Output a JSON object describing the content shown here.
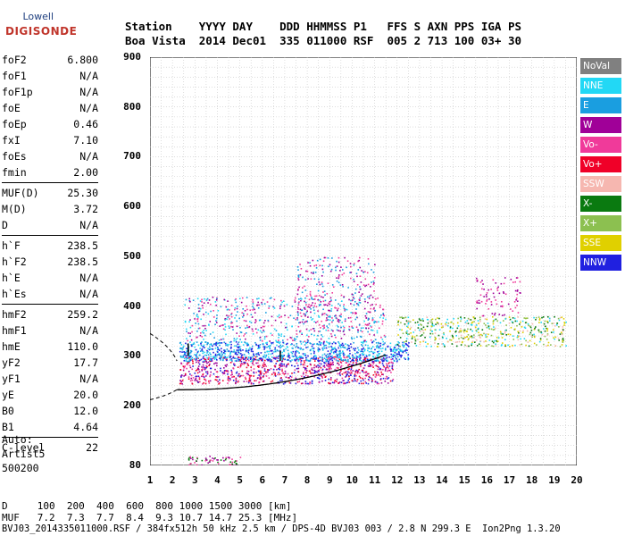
{
  "logo": {
    "line1": "Lowell",
    "line2": "DIGISONDE"
  },
  "header": {
    "row1": "Station    YYYY DAY    DDD HHMMSS P1   FFS S AXN PPS IGA PS",
    "row2": "Boa Vista  2014 Dec01  335 011000 RSF  005 2 713 100 03+ 30"
  },
  "params": {
    "group1": [
      {
        "name": "foF2",
        "value": "6.800"
      },
      {
        "name": "foF1",
        "value": "N/A"
      },
      {
        "name": "foF1p",
        "value": "N/A"
      },
      {
        "name": "foE",
        "value": "N/A"
      },
      {
        "name": "foEp",
        "value": "0.46"
      },
      {
        "name": "fxI",
        "value": "7.10"
      },
      {
        "name": "foEs",
        "value": "N/A"
      },
      {
        "name": "fmin",
        "value": "2.00"
      }
    ],
    "group2": [
      {
        "name": "MUF(D)",
        "value": "25.30"
      },
      {
        "name": "M(D)",
        "value": "3.72"
      },
      {
        "name": "D",
        "value": "N/A"
      }
    ],
    "group3": [
      {
        "name": "h`F",
        "value": "238.5"
      },
      {
        "name": "h`F2",
        "value": "238.5"
      },
      {
        "name": "h`E",
        "value": "N/A"
      },
      {
        "name": "h`Es",
        "value": "N/A"
      }
    ],
    "group4": [
      {
        "name": "hmF2",
        "value": "259.2"
      },
      {
        "name": "hmF1",
        "value": "N/A"
      },
      {
        "name": "hmE",
        "value": "110.0"
      },
      {
        "name": "yF2",
        "value": "17.7"
      },
      {
        "name": "yF1",
        "value": "N/A"
      },
      {
        "name": "yE",
        "value": "20.0"
      },
      {
        "name": "B0",
        "value": "12.0"
      },
      {
        "name": "B1",
        "value": "4.64"
      }
    ],
    "group5": [
      {
        "name": "C-level",
        "value": "22"
      }
    ]
  },
  "auto": {
    "line1": "Auto:",
    "line2": "Artist5",
    "line3": "500200"
  },
  "legend": [
    {
      "label": "NoVal",
      "color": "#808080"
    },
    {
      "label": "NNE",
      "color": "#22d8f5"
    },
    {
      "label": "E",
      "color": "#1a9ee0"
    },
    {
      "label": "W",
      "color": "#a00098"
    },
    {
      "label": "Vo-",
      "color": "#f03a9a"
    },
    {
      "label": "Vo+",
      "color": "#f00028"
    },
    {
      "label": "SSW",
      "color": "#f6b7b0"
    },
    {
      "label": "X-",
      "color": "#0a7a10"
    },
    {
      "label": "X+",
      "color": "#8cc050"
    },
    {
      "label": "SSE",
      "color": "#e0d000"
    },
    {
      "label": "NNW",
      "color": "#2020e0"
    }
  ],
  "axes": {
    "y_ticks": [
      "900",
      "800",
      "700",
      "600",
      "500",
      "400",
      "300",
      "200",
      "80"
    ],
    "x_ticks": [
      "1",
      "2",
      "3",
      "4",
      "5",
      "6",
      "7",
      "8",
      "9",
      "10",
      "11",
      "12",
      "13",
      "14",
      "15",
      "16",
      "17",
      "18",
      "19",
      "20"
    ]
  },
  "bottom": {
    "row1": "D     100  200  400  600  800 1000 1500 3000 [km]",
    "row2": "MUF   7.2  7.3  7.7  8.4  9.3 10.7 14.7 25.3 [MHz]",
    "row3": "BVJ03_2014335011000.RSF / 384fx512h 50 kHz 2.5 km / DPS-4D BVJ03 003 / 2.8 N 299.3 E  Ion2Png 1.3.20"
  }
}
